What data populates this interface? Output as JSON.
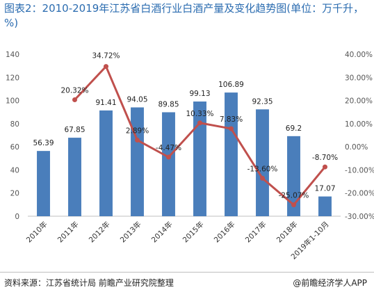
{
  "title": "图表2：2010-2019年江苏省白酒行业白酒产量及变化趋势图(单位：万千升，%)",
  "source": "资料来源：江苏省统计局 前瞻产业研究院整理",
  "brand": "@前瞻经济学人APP",
  "colors": {
    "bar": "#4a7ebb",
    "line": "#c0504d",
    "title": "#2b6cb0"
  },
  "chart_data": {
    "type": "bar",
    "categories": [
      "2010年",
      "2011年",
      "2012年",
      "2013年",
      "2014年",
      "2015年",
      "2016年",
      "2017年",
      "2018年",
      "2019年1-10月"
    ],
    "series": [
      {
        "type": "bar",
        "axis": "left",
        "values": [
          56.39,
          67.85,
          91.41,
          94.05,
          89.85,
          99.13,
          106.89,
          92.35,
          69.2,
          17.07
        ],
        "labels": [
          "56.39",
          "67.85",
          "91.41",
          "94.05",
          "89.85",
          "99.13",
          "106.89",
          "92.35",
          "69.2",
          "17.07"
        ]
      },
      {
        "type": "line",
        "axis": "right",
        "values": [
          null,
          20.32,
          34.72,
          2.89,
          -4.47,
          10.33,
          7.83,
          -13.6,
          -25.07,
          -8.7
        ],
        "labels": [
          "",
          "20.32%",
          "34.72%",
          "2.89%",
          "-4.47%",
          "10.33%",
          "7.83%",
          "-13.60%",
          "-25.07%",
          "-8.70%"
        ]
      }
    ],
    "ylim_left": [
      0,
      140
    ],
    "yticks_left": [
      "0",
      "20",
      "40",
      "60",
      "80",
      "100",
      "120",
      "140"
    ],
    "ylim_right": [
      -30,
      40
    ],
    "yticks_right": [
      "-30.00%",
      "-20.00%",
      "-10.00%",
      "0.00%",
      "10.00%",
      "20.00%",
      "30.00%",
      "40.00%"
    ],
    "grid": false,
    "legend": "none"
  }
}
